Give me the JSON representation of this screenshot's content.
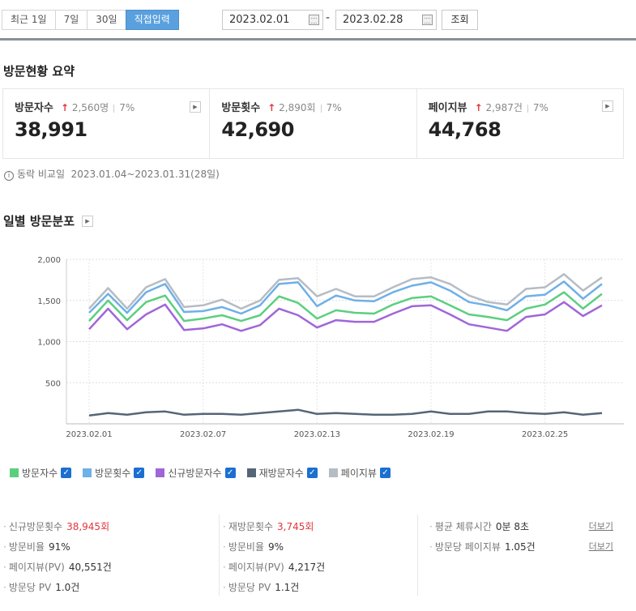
{
  "filters": {
    "period_buttons": [
      "최근 1일",
      "7일",
      "30일",
      "직접입력"
    ],
    "start_date": "2023.02.01",
    "end_date": "2023.02.28",
    "search_label": "조회"
  },
  "summary": {
    "title": "방문현황 요약",
    "cards": [
      {
        "label": "방문자수",
        "delta": "2,560명",
        "percent": "7%",
        "value": "38,991"
      },
      {
        "label": "방문횟수",
        "delta": "2,890회",
        "percent": "7%",
        "value": "42,690"
      },
      {
        "label": "페이지뷰",
        "delta": "2,987건",
        "percent": "7%",
        "value": "44,768"
      }
    ],
    "compare_label": "동락 비교일",
    "compare_range": "2023.01.04~2023.01.31(28일)"
  },
  "daily": {
    "title": "일별 방문분포"
  },
  "chart_data": {
    "type": "line",
    "x": [
      "2023.02.01",
      "2023.02.02",
      "2023.02.03",
      "2023.02.04",
      "2023.02.05",
      "2023.02.06",
      "2023.02.07",
      "2023.02.08",
      "2023.02.09",
      "2023.02.10",
      "2023.02.11",
      "2023.02.12",
      "2023.02.13",
      "2023.02.14",
      "2023.02.15",
      "2023.02.16",
      "2023.02.17",
      "2023.02.18",
      "2023.02.19",
      "2023.02.20",
      "2023.02.21",
      "2023.02.22",
      "2023.02.23",
      "2023.02.24",
      "2023.02.25",
      "2023.02.26",
      "2023.02.27",
      "2023.02.28"
    ],
    "xticks": [
      "2023.02.01",
      "2023.02.07",
      "2023.02.13",
      "2023.02.19",
      "2023.02.25"
    ],
    "yticks": [
      "2,000",
      "1,500",
      "1,000",
      "500"
    ],
    "ylim": [
      0,
      2000
    ],
    "series": [
      {
        "name": "방문자수",
        "color": "#5ccf7f",
        "values": [
          1250,
          1500,
          1260,
          1480,
          1560,
          1250,
          1280,
          1320,
          1250,
          1320,
          1550,
          1470,
          1280,
          1380,
          1350,
          1340,
          1450,
          1530,
          1550,
          1440,
          1330,
          1300,
          1260,
          1400,
          1450,
          1600,
          1400,
          1580
        ]
      },
      {
        "name": "방문횟수",
        "color": "#6eb0e8",
        "values": [
          1350,
          1580,
          1350,
          1600,
          1700,
          1360,
          1370,
          1420,
          1340,
          1440,
          1700,
          1720,
          1430,
          1560,
          1500,
          1490,
          1600,
          1680,
          1720,
          1620,
          1480,
          1440,
          1380,
          1550,
          1570,
          1730,
          1520,
          1700
        ]
      },
      {
        "name": "신규방문자수",
        "color": "#a066d8",
        "values": [
          1150,
          1400,
          1150,
          1330,
          1450,
          1140,
          1160,
          1210,
          1130,
          1200,
          1400,
          1320,
          1170,
          1260,
          1240,
          1240,
          1340,
          1430,
          1440,
          1330,
          1210,
          1170,
          1130,
          1300,
          1330,
          1480,
          1310,
          1440
        ]
      },
      {
        "name": "재방문자수",
        "color": "#556577",
        "values": [
          100,
          130,
          110,
          140,
          150,
          110,
          120,
          120,
          110,
          130,
          150,
          170,
          120,
          130,
          120,
          110,
          110,
          120,
          150,
          120,
          120,
          150,
          150,
          130,
          120,
          140,
          110,
          130
        ]
      },
      {
        "name": "페이지뷰",
        "color": "#b6bcc4",
        "values": [
          1400,
          1650,
          1400,
          1660,
          1760,
          1420,
          1440,
          1510,
          1400,
          1500,
          1750,
          1770,
          1550,
          1640,
          1550,
          1550,
          1660,
          1760,
          1780,
          1700,
          1560,
          1480,
          1450,
          1640,
          1660,
          1820,
          1620,
          1780
        ]
      }
    ]
  },
  "legend": [
    "방문자수",
    "방문횟수",
    "신규방문자수",
    "재방문자수",
    "페이지뷰"
  ],
  "stats": {
    "col1": [
      {
        "label": "신규방문횟수",
        "value": "38,945회"
      },
      {
        "label": "방문비율",
        "value": "91%"
      },
      {
        "label": "페이지뷰(PV)",
        "value": "40,551건"
      },
      {
        "label": "방문당 PV",
        "value": "1.0건"
      }
    ],
    "col2": [
      {
        "label": "재방문횟수",
        "value": "3,745회"
      },
      {
        "label": "방문비율",
        "value": "9%"
      },
      {
        "label": "페이지뷰(PV)",
        "value": "4,217건"
      },
      {
        "label": "방문당 PV",
        "value": "1.1건"
      }
    ],
    "col3": [
      {
        "label": "평균 체류시간",
        "value": "0분 8초"
      },
      {
        "label": "방문당 페이지뷰",
        "value": "1.05건"
      }
    ],
    "more_label": "더보기"
  }
}
